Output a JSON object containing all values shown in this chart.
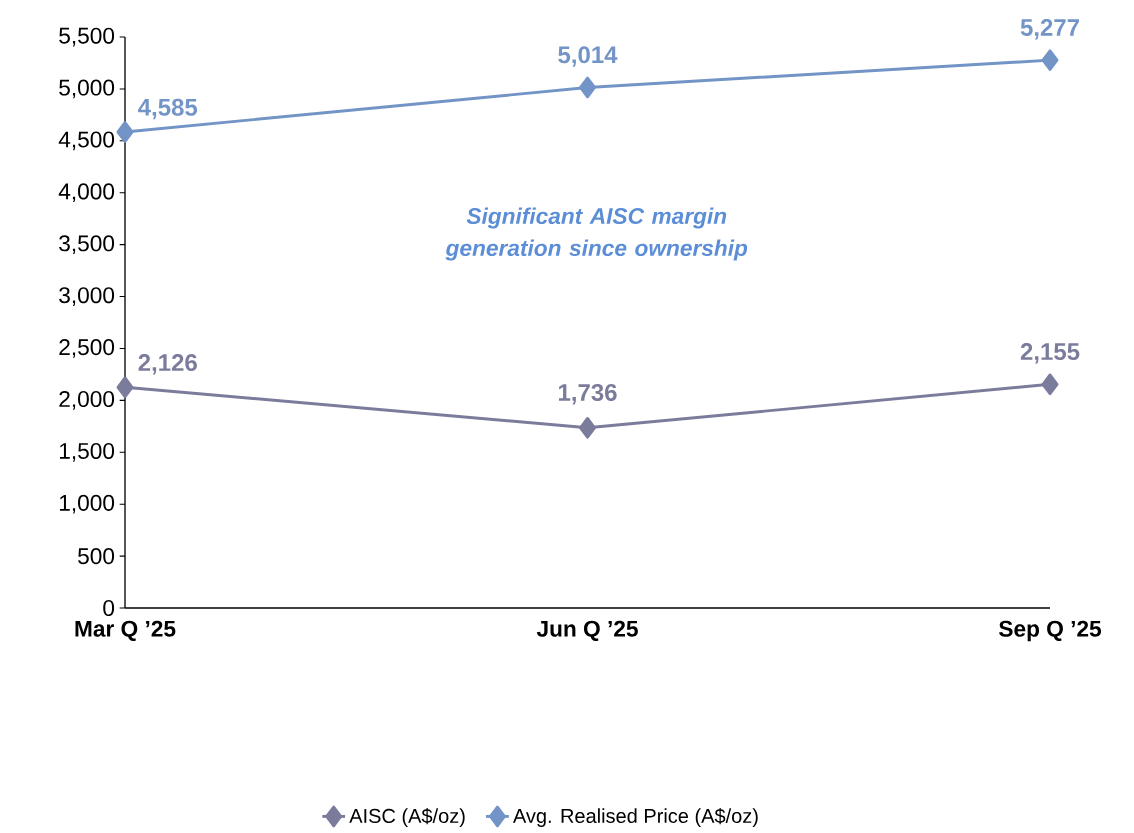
{
  "chart_data": {
    "type": "line",
    "categories": [
      "Mar Q ’25",
      "Jun Q ’25",
      "Sep Q ’25"
    ],
    "series": [
      {
        "name": "AISC (A$/oz)",
        "color": "#7b7b9c",
        "values": [
          2126,
          1736,
          2155
        ],
        "value_labels": [
          "2,126",
          "1,736",
          "2,155"
        ]
      },
      {
        "name": "Avg. Realised Price (A$/oz)",
        "color": "#7394c6",
        "values": [
          4585,
          5014,
          5277
        ],
        "value_labels": [
          "4,585",
          "5,014",
          "5,277"
        ]
      }
    ],
    "ylim": [
      0,
      5500
    ],
    "yticks": [
      0,
      500,
      {
        "value": 1000,
        "label": "1,000"
      },
      {
        "value": 1500,
        "label": "1,500"
      },
      {
        "value": 2000,
        "label": "2,000"
      },
      {
        "value": 2500,
        "label": "2,500"
      },
      {
        "value": 3000,
        "label": "3,000"
      },
      {
        "value": 3500,
        "label": "3,500"
      },
      {
        "value": 4000,
        "label": "4,000"
      },
      {
        "value": 4500,
        "label": "4,500"
      },
      {
        "value": 5000,
        "label": "5,000"
      },
      {
        "value": 5500,
        "label": "5,500"
      }
    ],
    "annotations": [
      "Significant AISC margin generation since ownership"
    ],
    "legend": "bottom",
    "marker": "diamond",
    "line_style": "solid",
    "grid": false
  }
}
